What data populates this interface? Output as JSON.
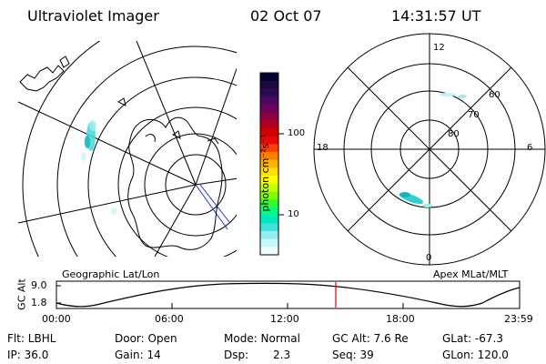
{
  "header": {
    "instrument": "Ultraviolet Imager",
    "date": "02 Oct 07",
    "time": "14:31:57 UT"
  },
  "colorbar": {
    "unit_label": "photon cm⁻²s⁻¹",
    "tick_labels": [
      "100",
      "10"
    ],
    "colors": [
      "#000033",
      "#1a0840",
      "#2a0a55",
      "#4a0860",
      "#700060",
      "#8a0040",
      "#b00020",
      "#d00000",
      "#e80808",
      "#ff4000",
      "#ff8000",
      "#ffb000",
      "#ffe000",
      "#ffff00",
      "#c8ff00",
      "#80ff00",
      "#30ff30",
      "#00ff80",
      "#00e8c0",
      "#40e0e0",
      "#90f0f0",
      "#c8f8f8",
      "#eeffff"
    ]
  },
  "left_map": {
    "label": "Geographic Lat/Lon"
  },
  "right_map": {
    "label": "Apex MLat/MLT",
    "mlt_labels": {
      "top": "12",
      "bottom": "0",
      "left": "18",
      "right": "6"
    },
    "lat_labels": [
      "60",
      "70",
      "80"
    ]
  },
  "altitude_plot": {
    "ylabel": "GC Alt",
    "yticks": [
      "9.0",
      "1.8"
    ],
    "xticks": [
      "00:00",
      "06:00",
      "12:00",
      "18:00",
      "23:59"
    ],
    "marker_color": "#e00000"
  },
  "status": {
    "filter": "Flt: LBHL",
    "door": "Door: Open",
    "mode": "Mode: Normal",
    "gc_alt": "GC Alt: 7.6 Re",
    "glat": "GLat: -67.3",
    "ip": "IP: 36.0",
    "gain": "Gain: 14",
    "dsp_label": "Dsp:",
    "dsp_value": "2.3",
    "seq": "Seq: 39",
    "glon": "GLon: 120.0"
  }
}
